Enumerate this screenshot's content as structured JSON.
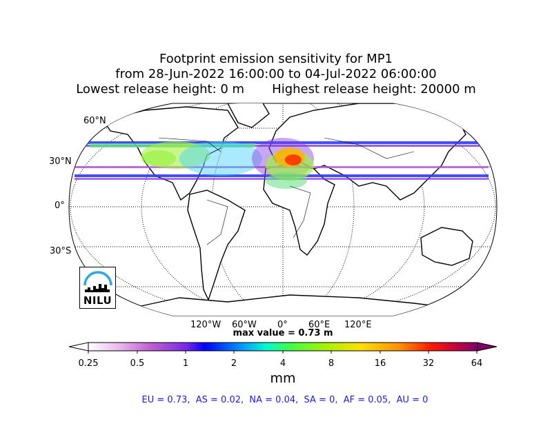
{
  "title": {
    "line1": "Footprint emission sensitivity for MP1",
    "line2": "from 28-Jun-2022 16:00:00 to 04-Jul-2022 06:00:00",
    "line3_left": "Lowest release height: 0 m",
    "line3_right": "Highest release height: 20000 m"
  },
  "map": {
    "projection": "Robinson",
    "lat_labels": [
      "60°N",
      "30°N",
      "0°",
      "30°S"
    ],
    "lon_labels": [
      "120°W",
      "60°W",
      "0°",
      "60°E",
      "120°E"
    ],
    "max_value": "max value = 0.73 m"
  },
  "colorbar": {
    "ticks": [
      "0.25",
      "0.5",
      "1",
      "2",
      "4",
      "8",
      "16",
      "32",
      "64"
    ],
    "units": "mm",
    "colors": [
      "#ffffff",
      "#d070d8",
      "#8a2be2",
      "#0000ff",
      "#00bfff",
      "#00ff7f",
      "#7cfc00",
      "#ffd700",
      "#ff8c00",
      "#ff0000",
      "#8b008b"
    ]
  },
  "stats": "EU = 0.73,  AS = 0.02,  NA = 0.04,  SA = 0,  AF = 0.05,  AU = 0",
  "logo": {
    "text": "NILU",
    "accent": "#29a8e0"
  }
}
